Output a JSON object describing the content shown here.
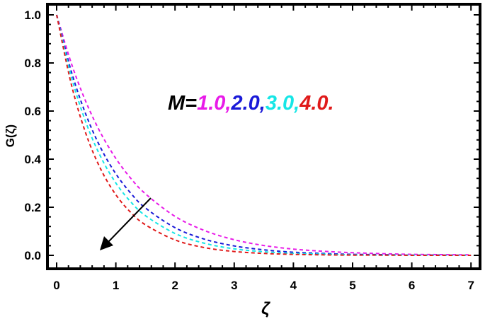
{
  "chart_data": {
    "type": "line",
    "xlabel": "ζ",
    "ylabel": "G(ζ)",
    "xlim": [
      0,
      7
    ],
    "ylim": [
      0,
      1.0
    ],
    "xticks": [
      "0",
      "1",
      "2",
      "3",
      "4",
      "5",
      "6",
      "7"
    ],
    "yticks": [
      "0.0",
      "0.2",
      "0.4",
      "0.6",
      "0.8",
      "1.0"
    ],
    "grid": false,
    "line_style": "dashed",
    "annotation": {
      "prefix": "M=",
      "parts": [
        {
          "text": "1.0,",
          "color": "#e81be8"
        },
        {
          "text": "2.0,",
          "color": "#1a1ad8"
        },
        {
          "text": "3.0,",
          "color": "#16e6e6"
        },
        {
          "text": "4.0.",
          "color": "#e01a1a"
        }
      ],
      "arrow": "decreasing direction of increasing M"
    },
    "x": [
      0,
      0.25,
      0.5,
      0.75,
      1.0,
      1.25,
      1.5,
      2.0,
      2.5,
      3.0,
      3.5,
      4.0,
      4.5,
      5.0,
      5.5,
      6.0,
      6.5,
      7.0
    ],
    "series": [
      {
        "color": "#e81be8",
        "values": [
          1.0,
          0.797,
          0.635,
          0.506,
          0.403,
          0.321,
          0.256,
          0.162,
          0.103,
          0.065,
          0.041,
          0.026,
          0.017,
          0.011,
          0.007,
          0.004,
          0.003,
          0.002
        ]
      },
      {
        "color": "#1a1ad8",
        "values": [
          1.0,
          0.763,
          0.582,
          0.444,
          0.339,
          0.259,
          0.197,
          0.115,
          0.067,
          0.039,
          0.023,
          0.013,
          0.008,
          0.004,
          0.003,
          0.001,
          0.001,
          0.0
        ]
      },
      {
        "color": "#16e6e6",
        "values": [
          1.0,
          0.741,
          0.549,
          0.407,
          0.301,
          0.223,
          0.165,
          0.091,
          0.05,
          0.027,
          0.015,
          0.008,
          0.005,
          0.002,
          0.001,
          0.001,
          0.0,
          0.0
        ]
      },
      {
        "color": "#e01a1a",
        "values": [
          1.0,
          0.709,
          0.502,
          0.356,
          0.252,
          0.179,
          0.127,
          0.064,
          0.032,
          0.016,
          0.008,
          0.004,
          0.002,
          0.001,
          0.001,
          0.0,
          0.0,
          0.0
        ]
      }
    ]
  }
}
